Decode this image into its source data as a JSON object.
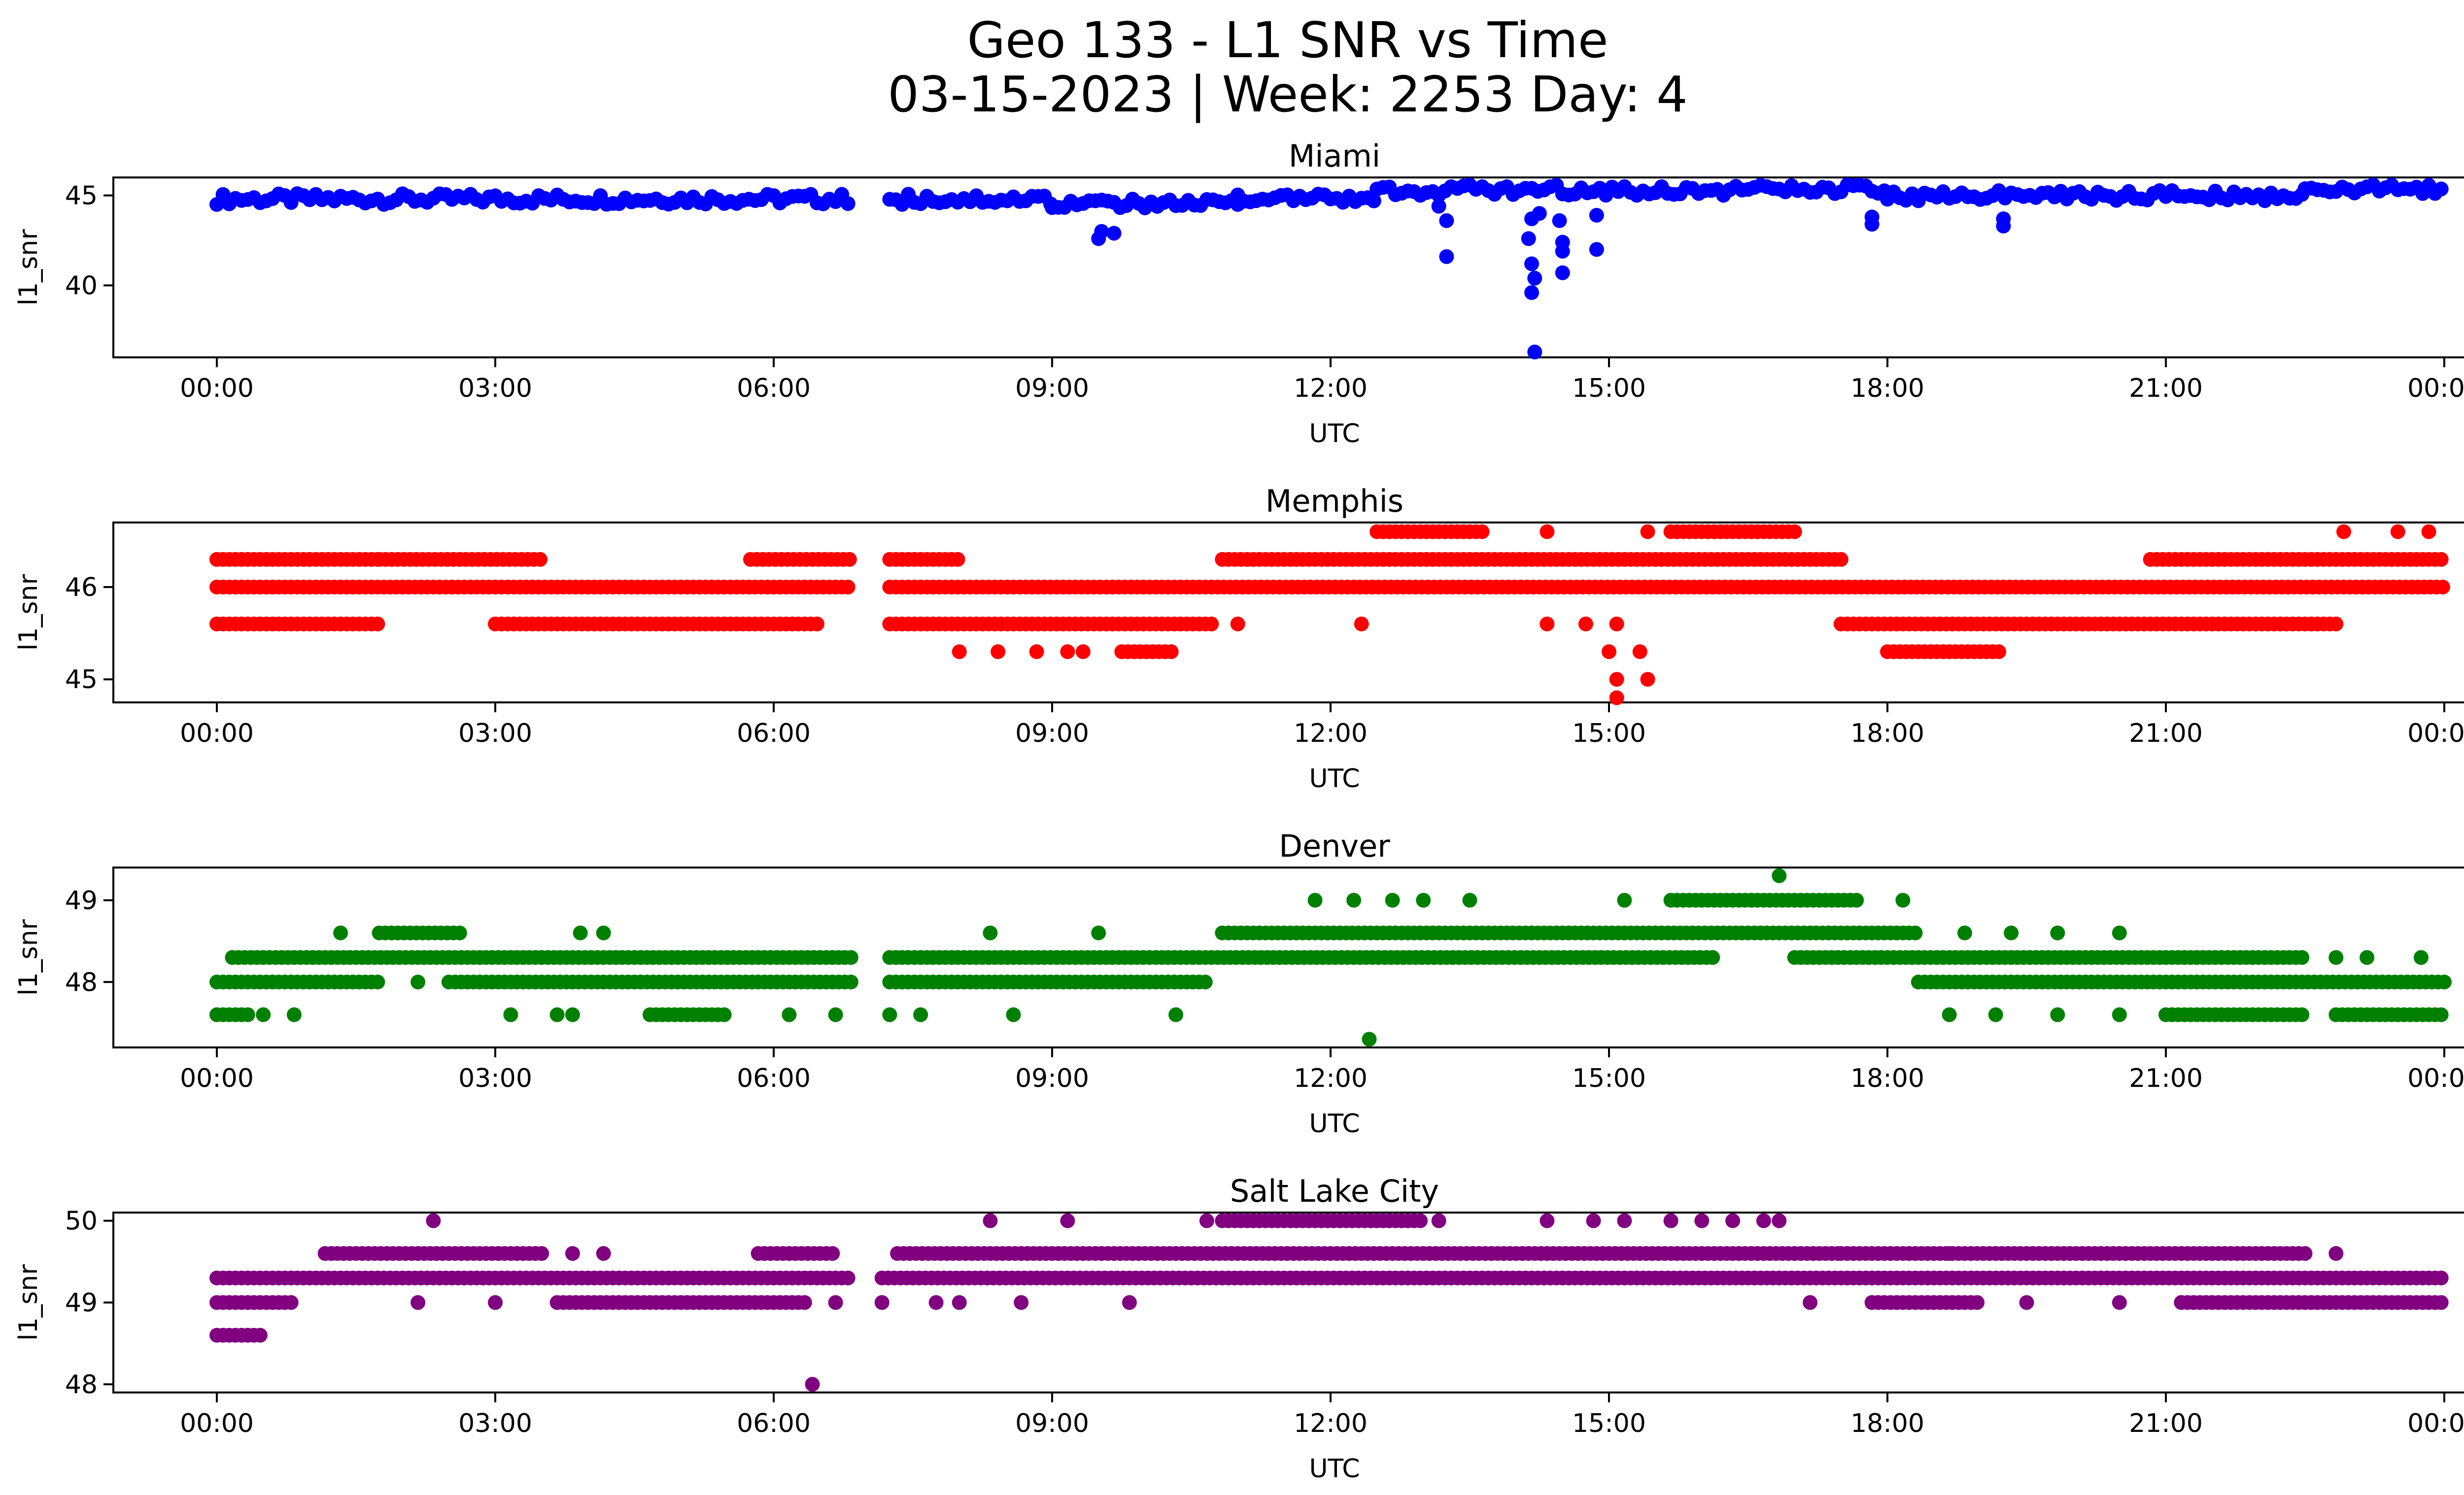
{
  "figure": {
    "title_line1": "Geo 133 - L1 SNR vs Time",
    "title_line2": "03-15-2023 | Week: 2253 Day: 4"
  },
  "chart_data": [
    {
      "type": "scatter",
      "title": "Miami",
      "xlabel": "UTC",
      "ylabel": "l1_snr",
      "color": "#0000ff",
      "xlim": [
        "2023-03-15T00:00",
        "2023-03-16T00:00"
      ],
      "xticks": [
        "00:00",
        "03:00",
        "06:00",
        "09:00",
        "12:00",
        "15:00",
        "18:00",
        "21:00",
        "00:00"
      ],
      "ylim": [
        36.0,
        46.0
      ],
      "yticks": [
        40,
        45
      ],
      "segments": [
        {
          "x": [
            "00:00",
            "06:50"
          ],
          "y": [
            44.5,
            45.1
          ]
        },
        {
          "x": [
            "07:15",
            "09:00"
          ],
          "y": [
            44.5,
            45.1
          ]
        },
        {
          "x": [
            "09:00",
            "11:00"
          ],
          "y": [
            44.3,
            44.8
          ]
        },
        {
          "x": [
            "11:00",
            "12:30"
          ],
          "y": [
            44.6,
            45.1
          ]
        },
        {
          "x": [
            "12:30",
            "18:00"
          ],
          "y": [
            45.0,
            45.6
          ]
        },
        {
          "x": [
            "18:00",
            "22:30"
          ],
          "y": [
            44.7,
            45.3
          ]
        },
        {
          "x": [
            "22:30",
            "24:00"
          ],
          "y": [
            45.1,
            45.6
          ]
        }
      ],
      "points": [
        {
          "x": "09:30",
          "y": 42.6
        },
        {
          "x": "09:32",
          "y": 43.0
        },
        {
          "x": "09:40",
          "y": 42.9
        },
        {
          "x": "13:15",
          "y": 43.6
        },
        {
          "x": "13:15",
          "y": 41.6
        },
        {
          "x": "13:10",
          "y": 44.4
        },
        {
          "x": "14:10",
          "y": 43.7
        },
        {
          "x": "14:08",
          "y": 42.6
        },
        {
          "x": "14:10",
          "y": 41.2
        },
        {
          "x": "14:12",
          "y": 40.4
        },
        {
          "x": "14:10",
          "y": 39.6
        },
        {
          "x": "14:12",
          "y": 36.3
        },
        {
          "x": "14:15",
          "y": 44.0
        },
        {
          "x": "14:28",
          "y": 43.6
        },
        {
          "x": "14:30",
          "y": 42.4
        },
        {
          "x": "14:30",
          "y": 41.9
        },
        {
          "x": "14:30",
          "y": 40.7
        },
        {
          "x": "14:52",
          "y": 42.0
        },
        {
          "x": "14:52",
          "y": 43.9
        },
        {
          "x": "17:50",
          "y": 43.4
        },
        {
          "x": "17:50",
          "y": 43.8
        },
        {
          "x": "19:15",
          "y": 43.3
        },
        {
          "x": "19:15",
          "y": 43.7
        }
      ]
    },
    {
      "type": "scatter",
      "title": "Memphis",
      "xlabel": "UTC",
      "ylabel": "l1_snr",
      "color": "#ff0000",
      "xlim": [
        "2023-03-15T00:00",
        "2023-03-16T00:00"
      ],
      "xticks": [
        "00:00",
        "03:00",
        "06:00",
        "09:00",
        "12:00",
        "15:00",
        "18:00",
        "21:00",
        "00:00"
      ],
      "ylim": [
        44.75,
        46.7
      ],
      "yticks": [
        45,
        46
      ],
      "segments": [
        {
          "x": [
            "00:00",
            "06:50"
          ],
          "y": [
            46.0,
            46.0
          ]
        },
        {
          "x": [
            "07:15",
            "24:00"
          ],
          "y": [
            46.0,
            46.0
          ]
        },
        {
          "x": [
            "00:00",
            "01:45"
          ],
          "y": [
            46.3,
            46.3
          ]
        },
        {
          "x": [
            "01:45",
            "03:30"
          ],
          "y": [
            46.3,
            46.3
          ]
        },
        {
          "x": [
            "05:45",
            "06:50"
          ],
          "y": [
            46.3,
            46.3
          ]
        },
        {
          "x": [
            "07:15",
            "08:00"
          ],
          "y": [
            46.3,
            46.3
          ]
        },
        {
          "x": [
            "10:50",
            "17:30"
          ],
          "y": [
            46.3,
            46.3
          ]
        },
        {
          "x": [
            "20:50",
            "24:00"
          ],
          "y": [
            46.3,
            46.3
          ]
        },
        {
          "x": [
            "00:00",
            "01:45"
          ],
          "y": [
            45.6,
            45.6
          ]
        },
        {
          "x": [
            "03:00",
            "06:30"
          ],
          "y": [
            45.6,
            45.6
          ]
        },
        {
          "x": [
            "07:15",
            "10:45"
          ],
          "y": [
            45.6,
            45.6
          ]
        },
        {
          "x": [
            "17:30",
            "22:50"
          ],
          "y": [
            45.6,
            45.6
          ]
        },
        {
          "x": [
            "09:45",
            "10:20"
          ],
          "y": [
            45.3,
            45.3
          ]
        },
        {
          "x": [
            "18:00",
            "19:15"
          ],
          "y": [
            45.3,
            45.3
          ]
        },
        {
          "x": [
            "12:30",
            "13:40"
          ],
          "y": [
            46.6,
            46.6
          ]
        },
        {
          "x": [
            "15:40",
            "17:00"
          ],
          "y": [
            46.6,
            46.6
          ]
        }
      ],
      "points": [
        {
          "x": "08:00",
          "y": 45.3
        },
        {
          "x": "08:25",
          "y": 45.3
        },
        {
          "x": "08:50",
          "y": 45.3
        },
        {
          "x": "09:10",
          "y": 45.3
        },
        {
          "x": "09:20",
          "y": 45.3
        },
        {
          "x": "11:00",
          "y": 45.6
        },
        {
          "x": "12:20",
          "y": 45.6
        },
        {
          "x": "14:20",
          "y": 45.6
        },
        {
          "x": "14:20",
          "y": 46.6
        },
        {
          "x": "14:45",
          "y": 45.6
        },
        {
          "x": "15:00",
          "y": 45.3
        },
        {
          "x": "15:20",
          "y": 45.3
        },
        {
          "x": "15:05",
          "y": 45.6
        },
        {
          "x": "15:05",
          "y": 45.0
        },
        {
          "x": "15:25",
          "y": 45.0
        },
        {
          "x": "15:05",
          "y": 44.8
        },
        {
          "x": "15:25",
          "y": 46.6
        },
        {
          "x": "22:55",
          "y": 46.6
        },
        {
          "x": "23:30",
          "y": 46.6
        },
        {
          "x": "23:50",
          "y": 46.6
        }
      ]
    },
    {
      "type": "scatter",
      "title": "Denver",
      "xlabel": "UTC",
      "ylabel": "l1_snr",
      "color": "#008000",
      "xlim": [
        "2023-03-15T00:00",
        "2023-03-16T00:00"
      ],
      "xticks": [
        "00:00",
        "03:00",
        "06:00",
        "09:00",
        "12:00",
        "15:00",
        "18:00",
        "21:00",
        "00:00"
      ],
      "ylim": [
        47.2,
        49.4
      ],
      "yticks": [
        48,
        49
      ],
      "segments": [
        {
          "x": [
            "00:00",
            "01:45"
          ],
          "y": [
            48.0,
            48.0
          ]
        },
        {
          "x": [
            "02:30",
            "06:50"
          ],
          "y": [
            48.0,
            48.0
          ]
        },
        {
          "x": [
            "07:15",
            "10:40"
          ],
          "y": [
            48.0,
            48.0
          ]
        },
        {
          "x": [
            "18:20",
            "24:00"
          ],
          "y": [
            48.0,
            48.0
          ]
        },
        {
          "x": [
            "00:10",
            "06:50"
          ],
          "y": [
            48.3,
            48.3
          ]
        },
        {
          "x": [
            "07:15",
            "16:10"
          ],
          "y": [
            48.3,
            48.3
          ]
        },
        {
          "x": [
            "17:00",
            "22:30"
          ],
          "y": [
            48.3,
            48.3
          ]
        },
        {
          "x": [
            "01:45",
            "02:40"
          ],
          "y": [
            48.6,
            48.6
          ]
        },
        {
          "x": [
            "10:50",
            "18:20"
          ],
          "y": [
            48.6,
            48.6
          ]
        },
        {
          "x": [
            "15:40",
            "17:40"
          ],
          "y": [
            49.0,
            49.0
          ]
        },
        {
          "x": [
            "00:00",
            "00:20"
          ],
          "y": [
            47.6,
            47.6
          ]
        },
        {
          "x": [
            "04:40",
            "05:30"
          ],
          "y": [
            47.6,
            47.6
          ]
        },
        {
          "x": [
            "21:00",
            "22:30"
          ],
          "y": [
            47.6,
            47.6
          ]
        },
        {
          "x": [
            "22:50",
            "24:00"
          ],
          "y": [
            47.6,
            47.6
          ]
        }
      ],
      "points": [
        {
          "x": "00:30",
          "y": 47.6
        },
        {
          "x": "00:50",
          "y": 47.6
        },
        {
          "x": "01:20",
          "y": 48.6
        },
        {
          "x": "02:10",
          "y": 48.0
        },
        {
          "x": "03:10",
          "y": 47.6
        },
        {
          "x": "03:40",
          "y": 47.6
        },
        {
          "x": "03:50",
          "y": 47.6
        },
        {
          "x": "03:55",
          "y": 48.6
        },
        {
          "x": "04:10",
          "y": 48.6
        },
        {
          "x": "06:10",
          "y": 47.6
        },
        {
          "x": "06:40",
          "y": 47.6
        },
        {
          "x": "07:15",
          "y": 47.6
        },
        {
          "x": "07:35",
          "y": 47.6
        },
        {
          "x": "08:20",
          "y": 48.6
        },
        {
          "x": "08:35",
          "y": 47.6
        },
        {
          "x": "09:30",
          "y": 48.6
        },
        {
          "x": "10:20",
          "y": 47.6
        },
        {
          "x": "11:50",
          "y": 49.0
        },
        {
          "x": "12:15",
          "y": 49.0
        },
        {
          "x": "12:25",
          "y": 47.3
        },
        {
          "x": "12:40",
          "y": 49.0
        },
        {
          "x": "13:00",
          "y": 49.0
        },
        {
          "x": "13:30",
          "y": 49.0
        },
        {
          "x": "15:10",
          "y": 49.0
        },
        {
          "x": "16:50",
          "y": 49.3
        },
        {
          "x": "18:10",
          "y": 49.0
        },
        {
          "x": "18:40",
          "y": 47.6
        },
        {
          "x": "18:50",
          "y": 48.6
        },
        {
          "x": "19:10",
          "y": 47.6
        },
        {
          "x": "19:20",
          "y": 48.6
        },
        {
          "x": "19:50",
          "y": 48.6
        },
        {
          "x": "19:50",
          "y": 47.6
        },
        {
          "x": "20:30",
          "y": 48.6
        },
        {
          "x": "20:30",
          "y": 47.6
        },
        {
          "x": "22:50",
          "y": 48.3
        },
        {
          "x": "23:10",
          "y": 48.3
        },
        {
          "x": "23:45",
          "y": 48.3
        }
      ]
    },
    {
      "type": "scatter",
      "title": "Salt Lake City",
      "xlabel": "UTC",
      "ylabel": "l1_snr",
      "color": "#800080",
      "xlim": [
        "2023-03-15T00:00",
        "2023-03-16T00:00"
      ],
      "xticks": [
        "00:00",
        "03:00",
        "06:00",
        "09:00",
        "12:00",
        "15:00",
        "18:00",
        "21:00",
        "00:00"
      ],
      "ylim": [
        47.9,
        50.1
      ],
      "yticks": [
        48,
        49,
        50
      ],
      "segments": [
        {
          "x": [
            "00:00",
            "00:50"
          ],
          "y": [
            49.0,
            49.0
          ]
        },
        {
          "x": [
            "00:00",
            "06:50"
          ],
          "y": [
            49.3,
            49.3
          ]
        },
        {
          "x": [
            "07:10",
            "24:00"
          ],
          "y": [
            49.3,
            49.3
          ]
        },
        {
          "x": [
            "01:10",
            "03:30"
          ],
          "y": [
            49.6,
            49.6
          ]
        },
        {
          "x": [
            "05:50",
            "06:40"
          ],
          "y": [
            49.6,
            49.6
          ]
        },
        {
          "x": [
            "07:20",
            "17:30"
          ],
          "y": [
            49.6,
            49.6
          ]
        },
        {
          "x": [
            "17:30",
            "22:30"
          ],
          "y": [
            49.6,
            49.6
          ]
        },
        {
          "x": [
            "03:40",
            "06:20"
          ],
          "y": [
            49.0,
            49.0
          ]
        },
        {
          "x": [
            "17:50",
            "19:00"
          ],
          "y": [
            49.0,
            49.0
          ]
        },
        {
          "x": [
            "21:10",
            "24:00"
          ],
          "y": [
            49.0,
            49.0
          ]
        },
        {
          "x": [
            "00:00",
            "00:30"
          ],
          "y": [
            48.6,
            48.6
          ]
        },
        {
          "x": [
            "10:50",
            "13:00"
          ],
          "y": [
            50.0,
            50.0
          ]
        }
      ],
      "points": [
        {
          "x": "02:10",
          "y": 49.0
        },
        {
          "x": "02:20",
          "y": 50.0
        },
        {
          "x": "03:00",
          "y": 49.0
        },
        {
          "x": "03:50",
          "y": 49.6
        },
        {
          "x": "04:10",
          "y": 49.6
        },
        {
          "x": "06:25",
          "y": 48.0
        },
        {
          "x": "06:40",
          "y": 49.0
        },
        {
          "x": "07:10",
          "y": 49.0
        },
        {
          "x": "07:45",
          "y": 49.0
        },
        {
          "x": "08:00",
          "y": 49.0
        },
        {
          "x": "08:20",
          "y": 50.0
        },
        {
          "x": "08:40",
          "y": 49.0
        },
        {
          "x": "09:10",
          "y": 50.0
        },
        {
          "x": "09:50",
          "y": 49.0
        },
        {
          "x": "10:40",
          "y": 50.0
        },
        {
          "x": "13:10",
          "y": 50.0
        },
        {
          "x": "14:20",
          "y": 50.0
        },
        {
          "x": "14:50",
          "y": 50.0
        },
        {
          "x": "15:10",
          "y": 50.0
        },
        {
          "x": "15:40",
          "y": 50.0
        },
        {
          "x": "16:00",
          "y": 50.0
        },
        {
          "x": "16:20",
          "y": 50.0
        },
        {
          "x": "16:40",
          "y": 50.0
        },
        {
          "x": "16:50",
          "y": 50.0
        },
        {
          "x": "17:10",
          "y": 49.0
        },
        {
          "x": "18:40",
          "y": 49.6
        },
        {
          "x": "19:10",
          "y": 49.6
        },
        {
          "x": "19:30",
          "y": 49.0
        },
        {
          "x": "20:30",
          "y": 49.0
        },
        {
          "x": "21:10",
          "y": 49.0
        },
        {
          "x": "22:50",
          "y": 49.6
        }
      ]
    }
  ]
}
